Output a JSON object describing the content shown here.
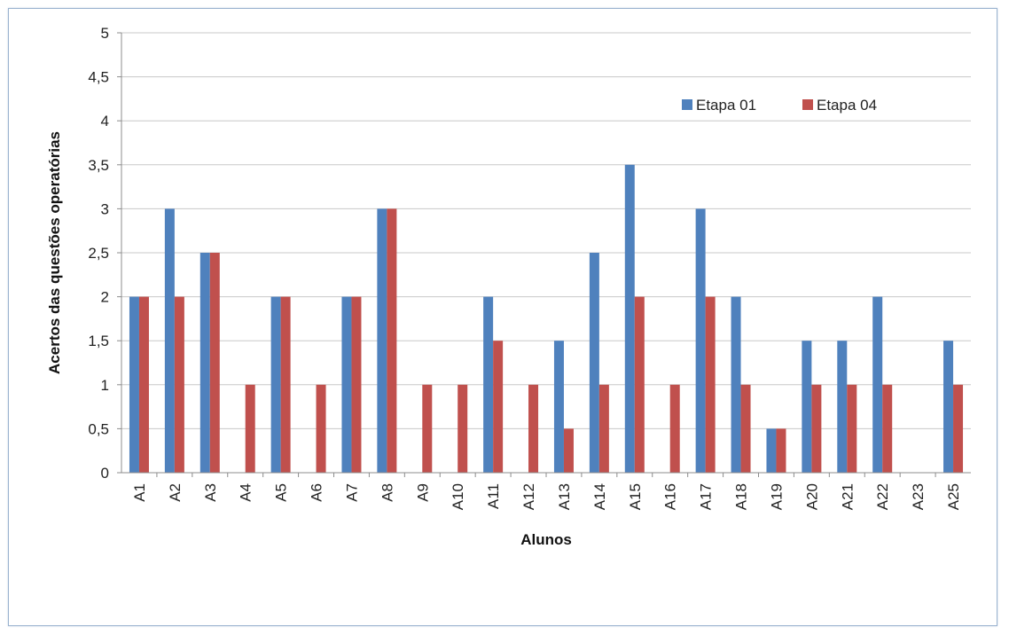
{
  "chart_data": {
    "type": "bar",
    "title": "",
    "xlabel": "Alunos",
    "ylabel": "Acertos das questões operatórias",
    "ylim": [
      0,
      5
    ],
    "yticks": [
      "0",
      "0,5",
      "1",
      "1,5",
      "2",
      "2,5",
      "3",
      "3,5",
      "4",
      "4,5",
      "5"
    ],
    "grid": true,
    "legend_position": "top-right",
    "categories": [
      "A1",
      "A2",
      "A3",
      "A4",
      "A5",
      "A6",
      "A7",
      "A8",
      "A9",
      "A10",
      "A11",
      "A12",
      "A13",
      "A14",
      "A15",
      "A16",
      "A17",
      "A18",
      "A19",
      "A20",
      "A21",
      "A22",
      "A23",
      "A25"
    ],
    "series": [
      {
        "name": "Etapa 01",
        "color": "#4f81bd",
        "values": [
          2,
          3,
          2.5,
          0,
          2,
          0,
          2,
          3,
          0,
          0,
          2,
          0,
          1.5,
          2.5,
          3.5,
          0,
          3,
          2,
          0.5,
          1.5,
          1.5,
          2,
          0,
          1.5
        ]
      },
      {
        "name": "Etapa 04",
        "color": "#c0504d",
        "values": [
          2,
          2,
          2.5,
          1,
          2,
          1,
          2,
          3,
          1,
          1,
          1.5,
          1,
          0.5,
          1,
          2,
          1,
          2,
          1,
          0.5,
          1,
          1,
          1,
          0,
          1
        ]
      }
    ]
  }
}
